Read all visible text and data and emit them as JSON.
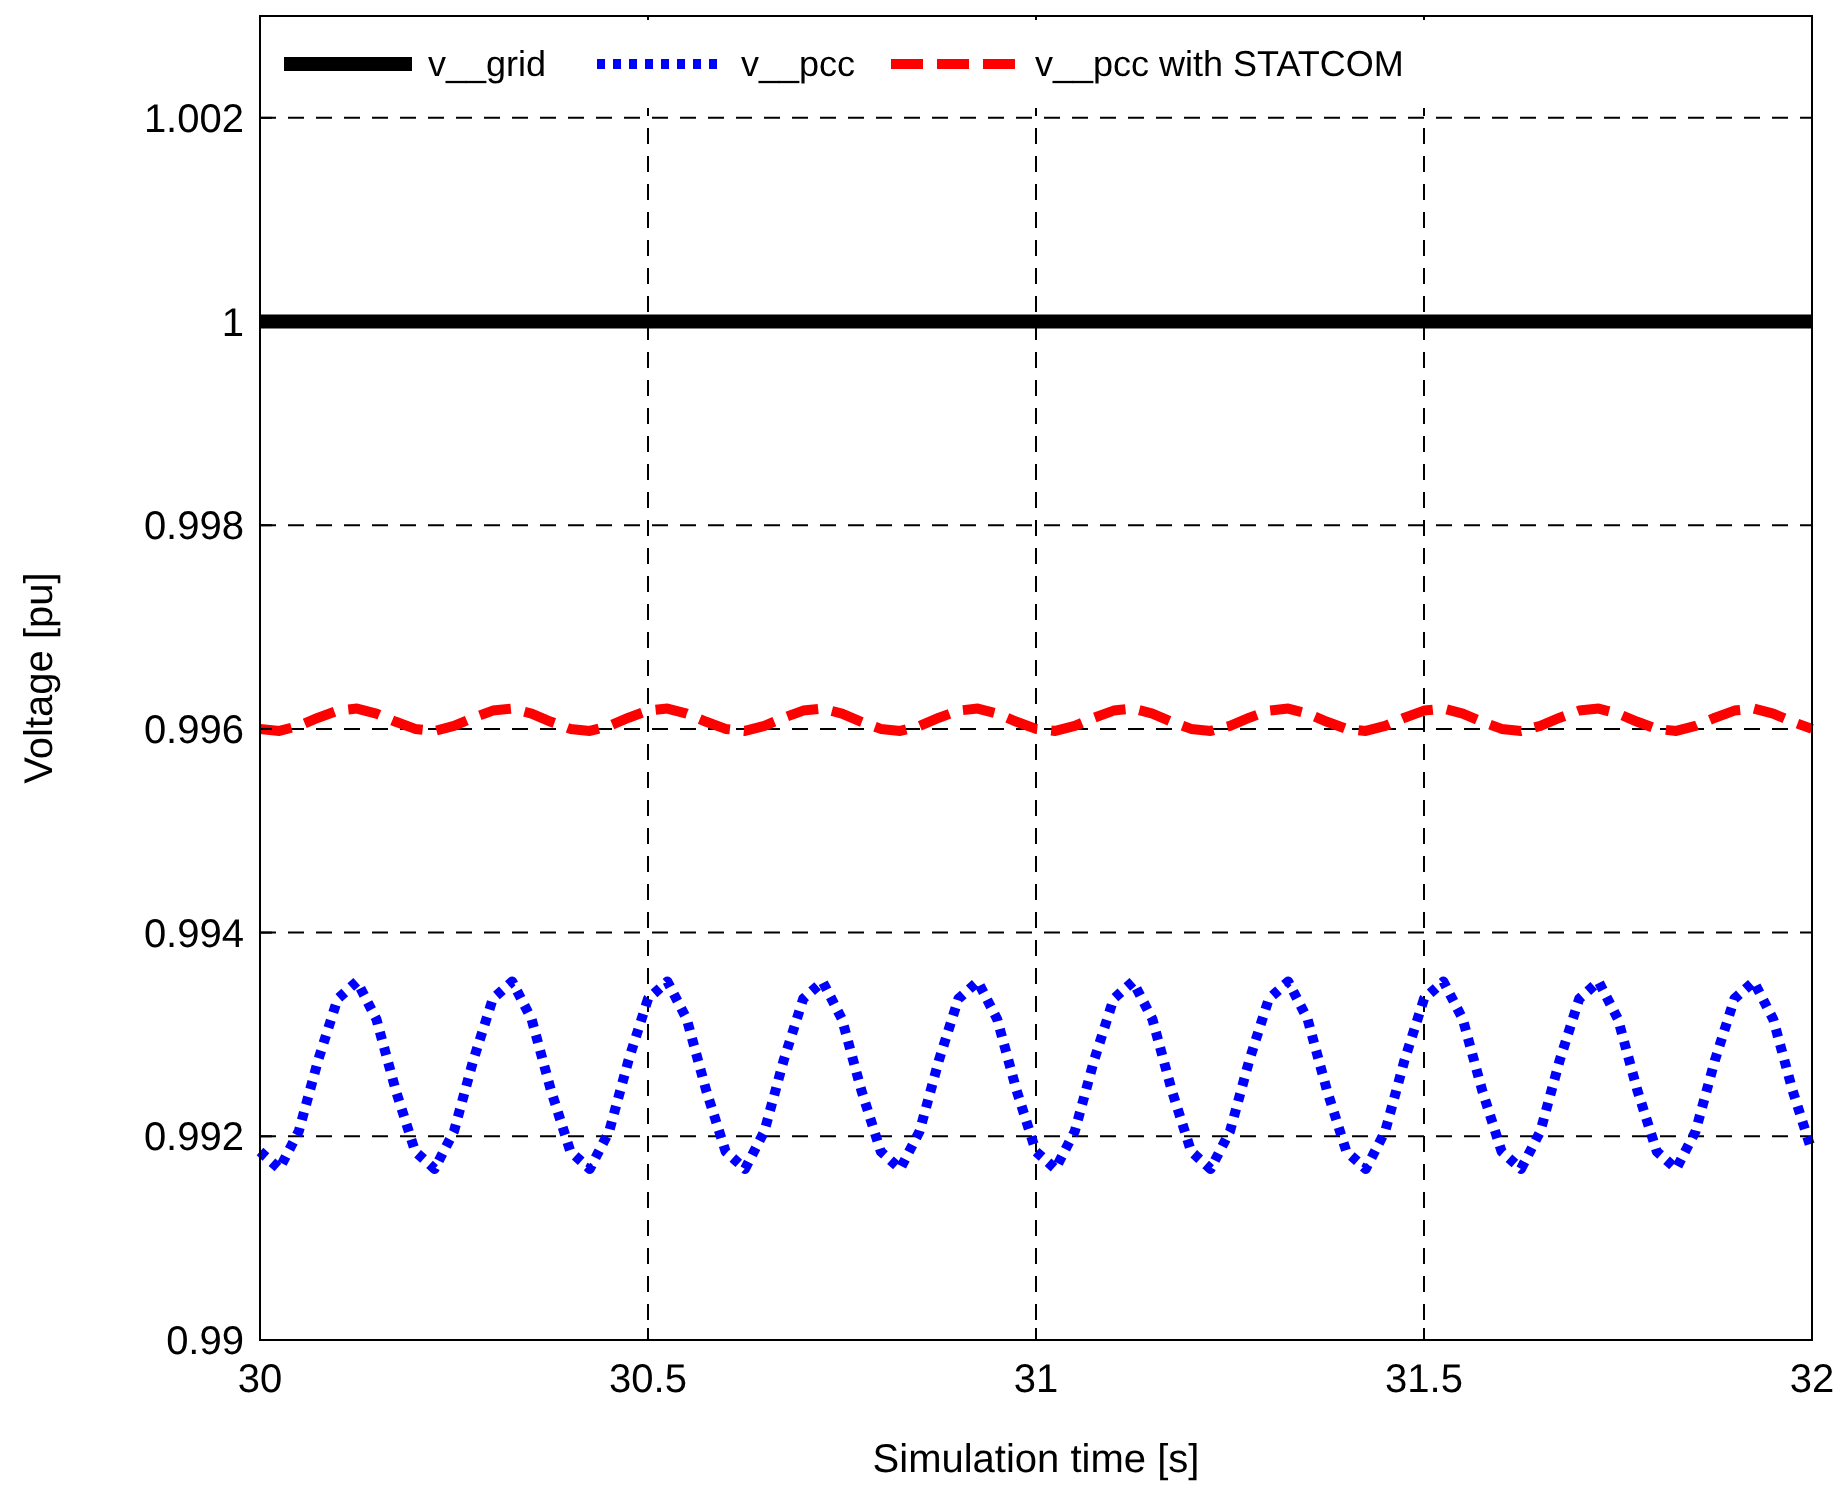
{
  "chart_data": {
    "type": "line",
    "xlabel": "Simulation time [s]",
    "ylabel": "Voltage [pu]",
    "xlim": [
      30,
      32
    ],
    "ylim": [
      0.99,
      1.003
    ],
    "xticks": [
      30,
      30.5,
      31,
      31.5,
      32
    ],
    "yticks": [
      0.99,
      0.992,
      0.994,
      0.996,
      0.998,
      1,
      1.002
    ],
    "grid": true,
    "legend": "top",
    "marker": "none",
    "series": [
      {
        "name": "v__grid",
        "color": "#000000",
        "line_style": "solid",
        "x": [
          30,
          32
        ],
        "values": [
          1,
          1
        ]
      },
      {
        "name": "v__pcc",
        "color": "#0000ff",
        "line_style": "dotted",
        "x": [
          30,
          30.025,
          30.05,
          30.075,
          30.1,
          30.125,
          30.15,
          30.175,
          30.2,
          30.225,
          30.25,
          30.275,
          30.3,
          30.325,
          30.35,
          30.375,
          30.4,
          30.425,
          30.45,
          30.475,
          30.5,
          30.525,
          30.55,
          30.575,
          30.6,
          30.625,
          30.65,
          30.675,
          30.7,
          30.725,
          30.75,
          30.775,
          30.8,
          30.825,
          30.85,
          30.875,
          30.9,
          30.925,
          30.95,
          30.975,
          31,
          31.025,
          31.05,
          31.075,
          31.1,
          31.125,
          31.15,
          31.175,
          31.2,
          31.225,
          31.25,
          31.275,
          31.3,
          31.325,
          31.35,
          31.375,
          31.4,
          31.425,
          31.45,
          31.475,
          31.5,
          31.525,
          31.55,
          31.575,
          31.6,
          31.625,
          31.65,
          31.675,
          31.7,
          31.725,
          31.75,
          31.775,
          31.8,
          31.825,
          31.85,
          31.875,
          31.9,
          31.925,
          31.95,
          31.975,
          32
        ],
        "values": [
          0.99185,
          0.99168,
          0.99205,
          0.99275,
          0.99335,
          0.99352,
          0.99315,
          0.99245,
          0.99185,
          0.99168,
          0.99205,
          0.99275,
          0.99335,
          0.99352,
          0.99315,
          0.99245,
          0.99185,
          0.99168,
          0.99205,
          0.99275,
          0.99335,
          0.99352,
          0.99315,
          0.99245,
          0.99185,
          0.99168,
          0.99205,
          0.99275,
          0.99335,
          0.99352,
          0.99315,
          0.99245,
          0.99185,
          0.99168,
          0.99205,
          0.99275,
          0.99335,
          0.99352,
          0.99315,
          0.99245,
          0.99185,
          0.99168,
          0.99205,
          0.99275,
          0.99335,
          0.99352,
          0.99315,
          0.99245,
          0.99185,
          0.99168,
          0.99205,
          0.99275,
          0.99335,
          0.99352,
          0.99315,
          0.99245,
          0.99185,
          0.99168,
          0.99205,
          0.99275,
          0.99335,
          0.99352,
          0.99315,
          0.99245,
          0.99185,
          0.99168,
          0.99205,
          0.99275,
          0.99335,
          0.99352,
          0.99315,
          0.99245,
          0.99185,
          0.99168,
          0.99205,
          0.99275,
          0.99335,
          0.99352,
          0.99315,
          0.99245,
          0.99185
        ]
      },
      {
        "name": "v__pcc with STATCOM",
        "color": "#ff0000",
        "line_style": "dashed",
        "x": [
          30,
          30.025,
          30.05,
          30.075,
          30.1,
          30.125,
          30.15,
          30.175,
          30.2,
          30.225,
          30.25,
          30.275,
          30.3,
          30.325,
          30.35,
          30.375,
          30.4,
          30.425,
          30.45,
          30.475,
          30.5,
          30.525,
          30.55,
          30.575,
          30.6,
          30.625,
          30.65,
          30.675,
          30.7,
          30.725,
          30.75,
          30.775,
          30.8,
          30.825,
          30.85,
          30.875,
          30.9,
          30.925,
          30.95,
          30.975,
          31,
          31.025,
          31.05,
          31.075,
          31.1,
          31.125,
          31.15,
          31.175,
          31.2,
          31.225,
          31.25,
          31.275,
          31.3,
          31.325,
          31.35,
          31.375,
          31.4,
          31.425,
          31.45,
          31.475,
          31.5,
          31.525,
          31.55,
          31.575,
          31.6,
          31.625,
          31.65,
          31.675,
          31.7,
          31.725,
          31.75,
          31.775,
          31.8,
          31.825,
          31.85,
          31.875,
          31.9,
          31.925,
          31.95,
          31.975,
          32
        ],
        "values": [
          0.996,
          0.99598,
          0.99603,
          0.99611,
          0.99618,
          0.9962,
          0.99615,
          0.99607,
          0.996,
          0.99598,
          0.99603,
          0.99611,
          0.99618,
          0.9962,
          0.99615,
          0.99607,
          0.996,
          0.99598,
          0.99603,
          0.99611,
          0.99618,
          0.9962,
          0.99615,
          0.99607,
          0.996,
          0.99598,
          0.99603,
          0.99611,
          0.99618,
          0.9962,
          0.99615,
          0.99607,
          0.996,
          0.99598,
          0.99603,
          0.99611,
          0.99618,
          0.9962,
          0.99615,
          0.99607,
          0.996,
          0.99598,
          0.99603,
          0.99611,
          0.99618,
          0.9962,
          0.99615,
          0.99607,
          0.996,
          0.99598,
          0.99603,
          0.99611,
          0.99618,
          0.9962,
          0.99615,
          0.99607,
          0.996,
          0.99598,
          0.99603,
          0.99611,
          0.99618,
          0.9962,
          0.99615,
          0.99607,
          0.996,
          0.99598,
          0.99603,
          0.99611,
          0.99618,
          0.9962,
          0.99615,
          0.99607,
          0.996,
          0.99598,
          0.99603,
          0.99611,
          0.99618,
          0.9962,
          0.99615,
          0.99607,
          0.996
        ]
      }
    ]
  }
}
